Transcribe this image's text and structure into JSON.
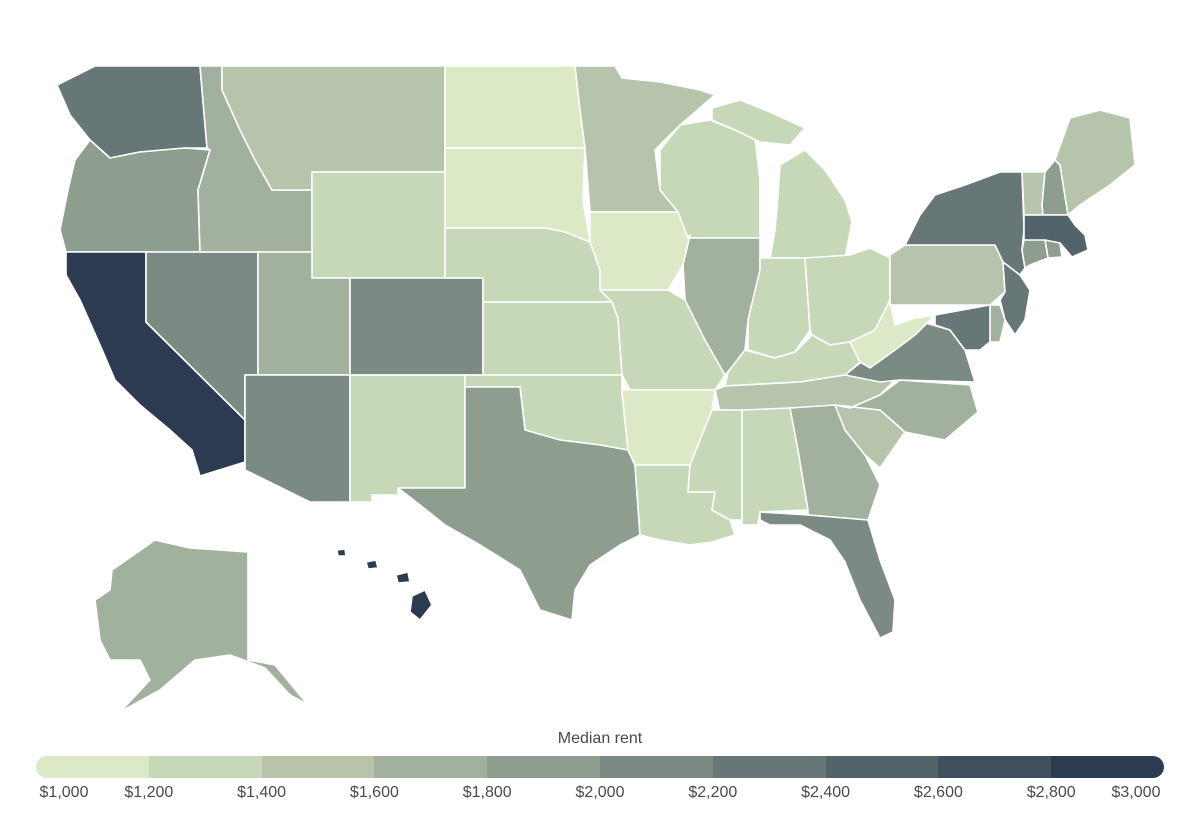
{
  "legend": {
    "title": "Median rent",
    "ticks": [
      "$1,000",
      "$1,200",
      "$1,400",
      "$1,600",
      "$1,800",
      "$2,000",
      "$2,200",
      "$2,400",
      "$2,600",
      "$2,800",
      "$3,000"
    ],
    "bins": [
      1000,
      1200,
      1400,
      1600,
      1800,
      2000,
      2200,
      2400,
      2600,
      2800,
      3000
    ],
    "colors": [
      "#dbe9c7",
      "#c7d8b8",
      "#b5c4ab",
      "#a1b19d",
      "#8d9d8e",
      "#7b8a82",
      "#677676",
      "#53636a",
      "#3f4f5d",
      "#2c3b50"
    ]
  },
  "states": {
    "WA": 2300,
    "OR": 1900,
    "CA": 2950,
    "NV": 2050,
    "ID": 1700,
    "MT": 1500,
    "WY": 1300,
    "UT": 1750,
    "AZ": 2000,
    "CO": 2100,
    "NM": 1300,
    "ND": 1100,
    "SD": 1100,
    "NE": 1300,
    "KS": 1300,
    "OK": 1300,
    "TX": 1800,
    "MN": 1500,
    "IA": 1150,
    "MO": 1300,
    "AR": 1150,
    "LA": 1350,
    "WI": 1350,
    "IL": 1750,
    "MI": 1350,
    "IN": 1350,
    "OH": 1300,
    "KY": 1300,
    "TN": 1450,
    "MS": 1350,
    "AL": 1350,
    "GA": 1750,
    "FL": 2050,
    "SC": 1550,
    "NC": 1750,
    "VA": 2050,
    "WV": 1100,
    "PA": 1550,
    "NY": 2300,
    "VT": 1450,
    "NH": 1850,
    "ME": 1550,
    "MA": 2450,
    "RI": 1900,
    "CT": 1900,
    "NJ": 2250,
    "DE": 1700,
    "MD": 2300,
    "AK": 1700,
    "HI": 2950
  }
}
